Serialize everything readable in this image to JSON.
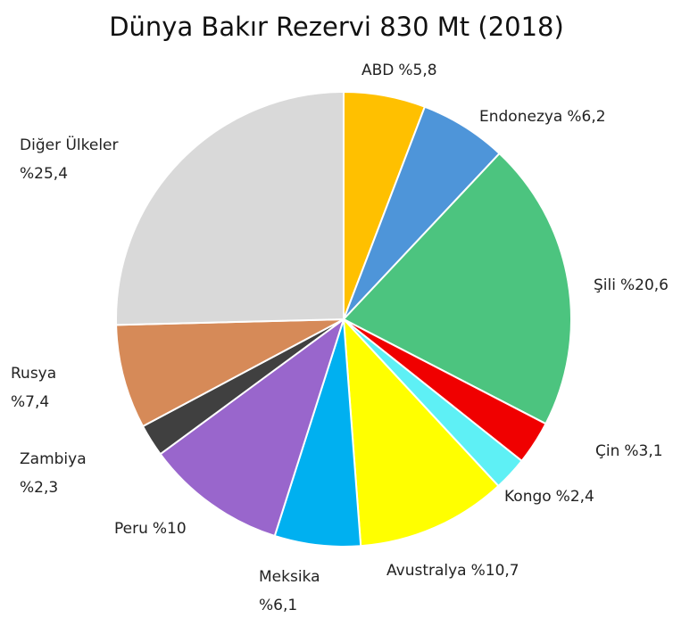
{
  "chart_data": {
    "type": "pie",
    "title": "Dünya Bakır Rezervi 830 Mt (2018)",
    "categories": [
      "ABD",
      "Endonezya",
      "Şili",
      "Çin",
      "Kongo",
      "Avustralya",
      "Meksika",
      "Peru",
      "Zambiya",
      "Rusya",
      "Diğer Ülkeler"
    ],
    "values": [
      5.8,
      6.2,
      20.6,
      3.1,
      2.4,
      10.7,
      6.1,
      10,
      2.3,
      7.4,
      25.4
    ],
    "value_labels": [
      "%5,8",
      "%6,2",
      "%20,6",
      "%3,1",
      "%2,4",
      "%10,7",
      "%6,1",
      "%10",
      "%2,3",
      "%7,4",
      "%25,4"
    ],
    "colors": [
      "#ffc000",
      "#4e95d9",
      "#4cc47f",
      "#f00000",
      "#5ef0f5",
      "#ffff00",
      "#00b0f0",
      "#9966cc",
      "#404040",
      "#d68a58",
      "#d9d9d9"
    ]
  }
}
